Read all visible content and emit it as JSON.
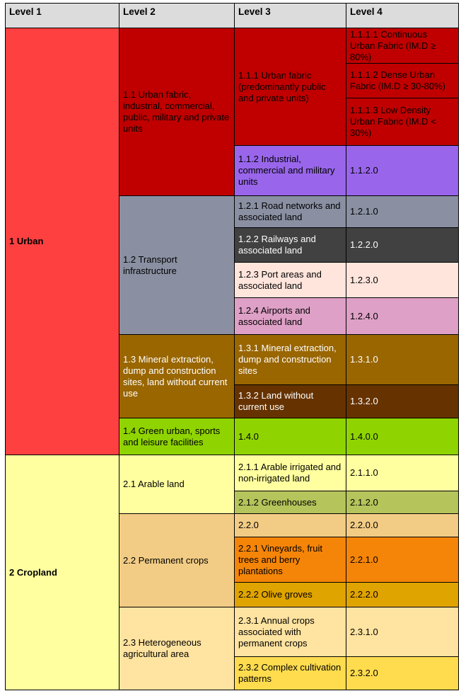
{
  "header": {
    "columns": [
      "Level 1",
      "Level 2",
      "Level 3",
      "Level 4"
    ],
    "bg": "#DCDCDC"
  },
  "colors": {
    "border": "#000000",
    "page_bg": "#FFFFFF",
    "header_bg": "#DCDCDC",
    "bright_red": "#FF4040",
    "dark_red": "#C00000",
    "purple": "#9966EB",
    "slate_gray": "#8A90A2",
    "dark_gray": "#414141",
    "light_pink": "#FFE5DC",
    "pink": "#DEA0C6",
    "brown": "#996600",
    "dark_brown": "#663300",
    "green": "#8FD400",
    "light_yellow": "#FFFFA0",
    "olive_green": "#B5C45B",
    "tan": "#F2CC85",
    "orange": "#F58508",
    "gold": "#E0A400",
    "peach": "#FFE3A0",
    "yellow_gold": "#FFDC4E"
  },
  "table": {
    "cells": [
      {
        "id": "1",
        "col": 1,
        "row": 1,
        "span": 11,
        "label": "1 Urban",
        "bg": "#FF4040",
        "fg": "#000000",
        "bold": true
      },
      {
        "id": "1.1",
        "col": 2,
        "row": 1,
        "span": 4,
        "label": "1.1 Urban fabric, industrial, commercial, public, military and private units",
        "bg": "#C00000",
        "fg": "#000000",
        "bold": false
      },
      {
        "id": "1.1.1",
        "col": 3,
        "row": 1,
        "span": 3,
        "label": "1.1.1 Urban fabric (predominantly public and private units)",
        "bg": "#C00000",
        "fg": "#000000",
        "bold": false
      },
      {
        "id": "1.1.1.1",
        "col": 4,
        "row": 1,
        "span": 1,
        "label": "1.1.1.1 Continuous Urban Fabric (IM.D ≥ 80%)",
        "bg": "#C00000",
        "fg": "#000000",
        "bold": false
      },
      {
        "id": "1.1.1.2",
        "col": 4,
        "row": 2,
        "span": 1,
        "label": "1.1.1.2 Dense Urban Fabric (IM.D ≥ 30-80%)",
        "bg": "#C00000",
        "fg": "#000000",
        "bold": false
      },
      {
        "id": "1.1.1.3",
        "col": 4,
        "row": 3,
        "span": 1,
        "label": "1.1.1.3 Low Density Urban Fabric (IM.D < 30%)",
        "bg": "#C00000",
        "fg": "#000000",
        "bold": false
      },
      {
        "id": "1.1.2",
        "col": 3,
        "row": 4,
        "span": 1,
        "label": "1.1.2 Industrial, commercial and military units",
        "bg": "#9966EB",
        "fg": "#000000",
        "bold": false
      },
      {
        "id": "1.1.2.0",
        "col": 4,
        "row": 4,
        "span": 1,
        "label": "1.1.2.0",
        "bg": "#9966EB",
        "fg": "#000000",
        "bold": false
      },
      {
        "id": "1.2",
        "col": 2,
        "row": 5,
        "span": 4,
        "label": "1.2 Transport infrastructure",
        "bg": "#8A90A2",
        "fg": "#000000",
        "bold": false
      },
      {
        "id": "1.2.1",
        "col": 3,
        "row": 5,
        "span": 1,
        "label": "1.2.1 Road networks and associated land",
        "bg": "#8A90A2",
        "fg": "#000000",
        "bold": false
      },
      {
        "id": "1.2.1.0",
        "col": 4,
        "row": 5,
        "span": 1,
        "label": "1.2.1.0",
        "bg": "#8A90A2",
        "fg": "#000000",
        "bold": false
      },
      {
        "id": "1.2.2",
        "col": 3,
        "row": 6,
        "span": 1,
        "label": "1.2.2 Railways and associated land",
        "bg": "#414141",
        "fg": "#FFFFFF",
        "bold": false
      },
      {
        "id": "1.2.2.0",
        "col": 4,
        "row": 6,
        "span": 1,
        "label": "1.2.2.0",
        "bg": "#414141",
        "fg": "#FFFFFF",
        "bold": false
      },
      {
        "id": "1.2.3",
        "col": 3,
        "row": 7,
        "span": 1,
        "label": "1.2.3 Port areas and associated land",
        "bg": "#FFE5DC",
        "fg": "#000000",
        "bold": false
      },
      {
        "id": "1.2.3.0",
        "col": 4,
        "row": 7,
        "span": 1,
        "label": "1.2.3.0",
        "bg": "#FFE5DC",
        "fg": "#000000",
        "bold": false
      },
      {
        "id": "1.2.4",
        "col": 3,
        "row": 8,
        "span": 1,
        "label": "1.2.4 Airports and associated land",
        "bg": "#DEA0C6",
        "fg": "#000000",
        "bold": false
      },
      {
        "id": "1.2.4.0",
        "col": 4,
        "row": 8,
        "span": 1,
        "label": "1.2.4.0",
        "bg": "#DEA0C6",
        "fg": "#000000",
        "bold": false
      },
      {
        "id": "1.3",
        "col": 2,
        "row": 9,
        "span": 2,
        "label": "1.3 Mineral extraction, dump and construction sites, land without current use",
        "bg": "#996600",
        "fg": "#FFFFFF",
        "bold": false
      },
      {
        "id": "1.3.1",
        "col": 3,
        "row": 9,
        "span": 1,
        "label": "1.3.1 Mineral extraction, dump and construction sites",
        "bg": "#996600",
        "fg": "#FFFFFF",
        "bold": false
      },
      {
        "id": "1.3.1.0",
        "col": 4,
        "row": 9,
        "span": 1,
        "label": "1.3.1.0",
        "bg": "#996600",
        "fg": "#FFFFFF",
        "bold": false
      },
      {
        "id": "1.3.2",
        "col": 3,
        "row": 10,
        "span": 1,
        "label": "1.3.2 Land without current use",
        "bg": "#663300",
        "fg": "#FFFFFF",
        "bold": false
      },
      {
        "id": "1.3.2.0",
        "col": 4,
        "row": 10,
        "span": 1,
        "label": "1.3.2.0",
        "bg": "#663300",
        "fg": "#FFFFFF",
        "bold": false
      },
      {
        "id": "1.4",
        "col": 2,
        "row": 11,
        "span": 1,
        "label": "1.4 Green urban, sports and leisure facilities",
        "bg": "#8FD400",
        "fg": "#000000",
        "bold": false
      },
      {
        "id": "1.4.0",
        "col": 3,
        "row": 11,
        "span": 1,
        "label": "1.4.0",
        "bg": "#8FD400",
        "fg": "#000000",
        "bold": false
      },
      {
        "id": "1.4.0.0",
        "col": 4,
        "row": 11,
        "span": 1,
        "label": "1.4.0.0",
        "bg": "#8FD400",
        "fg": "#000000",
        "bold": false
      },
      {
        "id": "2",
        "col": 1,
        "row": 12,
        "span": 7,
        "label": "2 Cropland",
        "bg": "#FFFFA0",
        "fg": "#000000",
        "bold": true
      },
      {
        "id": "2.1",
        "col": 2,
        "row": 12,
        "span": 2,
        "label": "2.1 Arable land",
        "bg": "#FFFFA0",
        "fg": "#000000",
        "bold": false
      },
      {
        "id": "2.1.1",
        "col": 3,
        "row": 12,
        "span": 1,
        "label": "2.1.1 Arable irrigated and non-irrigated land",
        "bg": "#FFFFA0",
        "fg": "#000000",
        "bold": false
      },
      {
        "id": "2.1.1.0",
        "col": 4,
        "row": 12,
        "span": 1,
        "label": "2.1.1.0",
        "bg": "#FFFFA0",
        "fg": "#000000",
        "bold": false
      },
      {
        "id": "2.1.2",
        "col": 3,
        "row": 13,
        "span": 1,
        "label": "2.1.2 Greenhouses",
        "bg": "#B5C45B",
        "fg": "#000000",
        "bold": false
      },
      {
        "id": "2.1.2.0",
        "col": 4,
        "row": 13,
        "span": 1,
        "label": "2.1.2.0",
        "bg": "#B5C45B",
        "fg": "#000000",
        "bold": false
      },
      {
        "id": "2.2",
        "col": 2,
        "row": 14,
        "span": 3,
        "label": "2.2 Permanent crops",
        "bg": "#F2CC85",
        "fg": "#000000",
        "bold": false
      },
      {
        "id": "2.2.0",
        "col": 3,
        "row": 14,
        "span": 1,
        "label": "2.2.0",
        "bg": "#F2CC85",
        "fg": "#000000",
        "bold": false
      },
      {
        "id": "2.2.0.0",
        "col": 4,
        "row": 14,
        "span": 1,
        "label": "2.2.0.0",
        "bg": "#F2CC85",
        "fg": "#000000",
        "bold": false
      },
      {
        "id": "2.2.1",
        "col": 3,
        "row": 15,
        "span": 1,
        "label": "2.2.1 Vineyards, fruit trees and berry plantations",
        "bg": "#F58508",
        "fg": "#000000",
        "bold": false
      },
      {
        "id": "2.2.1.0",
        "col": 4,
        "row": 15,
        "span": 1,
        "label": "2.2.1.0",
        "bg": "#F58508",
        "fg": "#000000",
        "bold": false
      },
      {
        "id": "2.2.2",
        "col": 3,
        "row": 16,
        "span": 1,
        "label": "2.2.2 Olive groves",
        "bg": "#E0A400",
        "fg": "#000000",
        "bold": false
      },
      {
        "id": "2.2.2.0",
        "col": 4,
        "row": 16,
        "span": 1,
        "label": "2.2.2.0",
        "bg": "#E0A400",
        "fg": "#000000",
        "bold": false
      },
      {
        "id": "2.3",
        "col": 2,
        "row": 17,
        "span": 2,
        "label": "2.3 Heterogeneous agricultural area",
        "bg": "#FFE3A0",
        "fg": "#000000",
        "bold": false
      },
      {
        "id": "2.3.1",
        "col": 3,
        "row": 17,
        "span": 1,
        "label": "2.3.1 Annual crops associated with permanent crops",
        "bg": "#FFE3A0",
        "fg": "#000000",
        "bold": false
      },
      {
        "id": "2.3.1.0",
        "col": 4,
        "row": 17,
        "span": 1,
        "label": "2.3.1.0",
        "bg": "#FFE3A0",
        "fg": "#000000",
        "bold": false
      },
      {
        "id": "2.3.2",
        "col": 3,
        "row": 18,
        "span": 1,
        "label": "2.3.2 Complex cultivation patterns",
        "bg": "#FFDC4E",
        "fg": "#000000",
        "bold": false
      },
      {
        "id": "2.3.2.0",
        "col": 4,
        "row": 18,
        "span": 1,
        "label": "2.3.2.0",
        "bg": "#FFDC4E",
        "fg": "#000000",
        "bold": false
      }
    ]
  }
}
